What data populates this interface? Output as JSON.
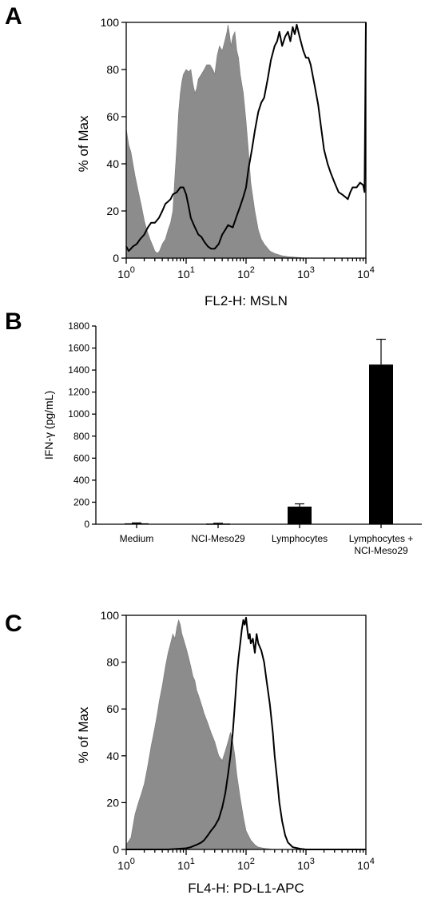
{
  "chart_data": [
    {
      "panel": "A",
      "type": "area",
      "xlabel": "FL2-H: MSLN",
      "ylabel": "% of Max",
      "xscale": "log",
      "xlim": [
        1,
        10000
      ],
      "ylim": [
        0,
        100
      ],
      "x_tick_labels": [
        {
          "base": "10",
          "exp": "0"
        },
        {
          "base": "10",
          "exp": "1"
        },
        {
          "base": "10",
          "exp": "2"
        },
        {
          "base": "10",
          "exp": "3"
        },
        {
          "base": "10",
          "exp": "4"
        }
      ],
      "y_tick_labels": [
        "0",
        "20",
        "40",
        "60",
        "80",
        "100"
      ],
      "series": [
        {
          "style": "filled-gray",
          "x": [
            1,
            1.1,
            1.2,
            1.4,
            1.6,
            1.8,
            2,
            2.2,
            2.5,
            2.8,
            3,
            3.3,
            3.6,
            4,
            4.5,
            5,
            5.5,
            6,
            6.5,
            7,
            7.5,
            8,
            8.5,
            9,
            10,
            11,
            12,
            13,
            14,
            15,
            16,
            18,
            20,
            22,
            25,
            28,
            30,
            33,
            36,
            40,
            44,
            48,
            50,
            53,
            56,
            60,
            65,
            70,
            75,
            80,
            90,
            100,
            110,
            120,
            140,
            160,
            180,
            200,
            250,
            300,
            400,
            500,
            700,
            1000,
            10000
          ],
          "y": [
            55,
            48,
            45,
            35,
            28,
            22,
            16,
            12,
            8,
            5,
            3,
            2,
            3,
            6,
            8,
            12,
            15,
            20,
            35,
            48,
            62,
            70,
            75,
            78,
            80,
            79,
            80,
            74,
            70,
            72,
            76,
            78,
            80,
            82,
            82,
            80,
            78,
            86,
            90,
            88,
            92,
            96,
            99,
            95,
            90,
            94,
            96,
            88,
            85,
            78,
            70,
            58,
            45,
            32,
            20,
            12,
            8,
            6,
            3,
            2,
            1,
            0.6,
            0.3,
            0,
            0
          ]
        },
        {
          "style": "black-outline",
          "x": [
            1,
            1.1,
            1.2,
            1.3,
            1.5,
            1.7,
            2,
            2.3,
            2.6,
            3,
            3.5,
            4,
            4.5,
            5,
            5.5,
            6,
            7,
            8,
            9,
            10,
            11,
            12,
            14,
            16,
            18,
            20,
            23,
            26,
            30,
            35,
            40,
            45,
            50,
            60,
            70,
            80,
            90,
            100,
            110,
            125,
            140,
            160,
            180,
            200,
            230,
            260,
            300,
            330,
            360,
            400,
            450,
            500,
            550,
            600,
            650,
            700,
            800,
            900,
            1000,
            1100,
            1200,
            1400,
            1600,
            1800,
            2000,
            2300,
            2600,
            3000,
            3500,
            4000,
            4500,
            5000,
            5500,
            6000,
            7000,
            8000,
            9000,
            9500,
            10000
          ],
          "y": [
            5,
            3,
            4,
            5,
            6,
            8,
            10,
            13,
            15,
            15,
            17,
            20,
            23,
            24,
            25,
            27,
            28,
            30,
            30,
            27,
            22,
            17,
            13,
            10,
            9,
            7,
            5,
            4,
            4,
            6,
            10,
            12,
            14,
            13,
            18,
            22,
            26,
            30,
            38,
            46,
            54,
            62,
            66,
            68,
            76,
            84,
            90,
            92,
            96,
            90,
            94,
            96,
            92,
            98,
            95,
            99,
            93,
            88,
            85,
            85,
            82,
            73,
            65,
            55,
            46,
            40,
            36,
            32,
            28,
            27,
            26,
            25,
            28,
            30,
            30,
            32,
            31,
            28,
            100
          ]
        }
      ]
    },
    {
      "panel": "B",
      "type": "bar",
      "ylabel": "IFN-γ (pg/mL)",
      "ylim": [
        0,
        1800
      ],
      "y_tick_labels": [
        "0",
        "200",
        "400",
        "600",
        "800",
        "1000",
        "1200",
        "1400",
        "1600",
        "1800"
      ],
      "categories": [
        [
          "Medium"
        ],
        [
          "NCI-Meso29"
        ],
        [
          "Lymphocytes"
        ],
        [
          "Lymphocytes +",
          "NCI-Meso29"
        ]
      ],
      "values": [
        8,
        6,
        160,
        1450
      ],
      "error_upper": [
        4,
        3,
        25,
        230
      ]
    },
    {
      "panel": "C",
      "type": "area",
      "xlabel": "FL4-H: PD-L1-APC",
      "ylabel": "% of Max",
      "xscale": "log",
      "xlim": [
        1,
        10000
      ],
      "ylim": [
        0,
        100
      ],
      "x_tick_labels": [
        {
          "base": "10",
          "exp": "0"
        },
        {
          "base": "10",
          "exp": "1"
        },
        {
          "base": "10",
          "exp": "2"
        },
        {
          "base": "10",
          "exp": "3"
        },
        {
          "base": "10",
          "exp": "4"
        }
      ],
      "y_tick_labels": [
        "0",
        "20",
        "40",
        "60",
        "80",
        "100"
      ],
      "series": [
        {
          "style": "filled-gray",
          "x": [
            1,
            1.2,
            1.4,
            1.6,
            1.8,
            2,
            2.3,
            2.6,
            3,
            3.3,
            3.6,
            4,
            4.5,
            5,
            5.5,
            6,
            6.5,
            7,
            7.5,
            8,
            8.5,
            9,
            10,
            11,
            12,
            13,
            14,
            15,
            16,
            18,
            20,
            23,
            26,
            30,
            35,
            40,
            45,
            50,
            55,
            60,
            65,
            70,
            80,
            90,
            100,
            120,
            140,
            160,
            200,
            300,
            1000,
            10000
          ],
          "y": [
            2,
            5,
            15,
            20,
            24,
            28,
            36,
            44,
            52,
            58,
            64,
            70,
            78,
            84,
            88,
            92,
            90,
            95,
            98,
            96,
            92,
            90,
            86,
            82,
            78,
            74,
            72,
            68,
            66,
            62,
            58,
            54,
            50,
            46,
            40,
            38,
            42,
            46,
            50,
            46,
            40,
            32,
            22,
            14,
            8,
            4,
            2,
            1,
            0.5,
            0,
            0,
            0
          ]
        },
        {
          "style": "black-outline",
          "x": [
            1,
            5,
            10,
            12,
            15,
            18,
            20,
            23,
            26,
            30,
            35,
            40,
            45,
            50,
            55,
            60,
            65,
            70,
            75,
            80,
            85,
            90,
            95,
            100,
            105,
            110,
            115,
            120,
            130,
            140,
            150,
            160,
            180,
            200,
            220,
            250,
            280,
            300,
            330,
            360,
            400,
            450,
            500,
            600,
            800,
            1000,
            10000
          ],
          "y": [
            0,
            0,
            0.5,
            1,
            2,
            3,
            4,
            6,
            8,
            10,
            13,
            18,
            24,
            32,
            40,
            50,
            62,
            74,
            82,
            88,
            94,
            98,
            96,
            99,
            94,
            90,
            92,
            88,
            90,
            84,
            92,
            88,
            85,
            80,
            72,
            62,
            50,
            40,
            30,
            20,
            12,
            6,
            3,
            1,
            0.3,
            0,
            0
          ]
        }
      ]
    }
  ]
}
